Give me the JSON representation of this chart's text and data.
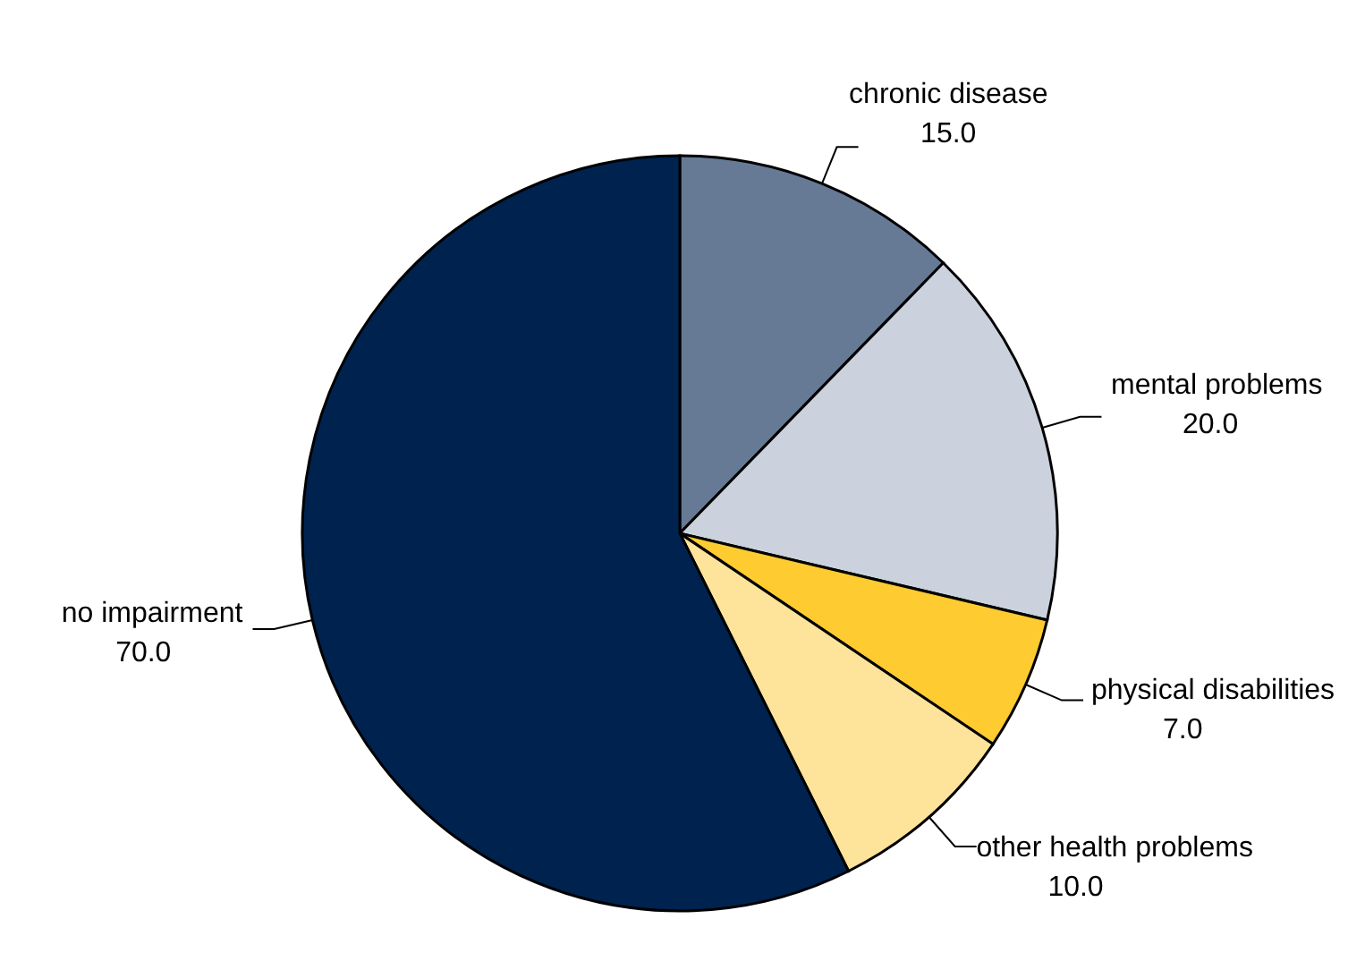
{
  "chart_data": {
    "type": "pie",
    "categories": [
      "chronic disease",
      "mental problems",
      "physical disabilities",
      "other health problems",
      "no impairment"
    ],
    "values": [
      15,
      20,
      7,
      10,
      70
    ],
    "value_labels": [
      "15.0",
      "20.0",
      "7.0",
      "10.0",
      "70.0"
    ],
    "colors": [
      "#667a96",
      "#cbd2dd",
      "#fecb30",
      "#fee39a",
      "#00224e"
    ],
    "legend": false
  }
}
